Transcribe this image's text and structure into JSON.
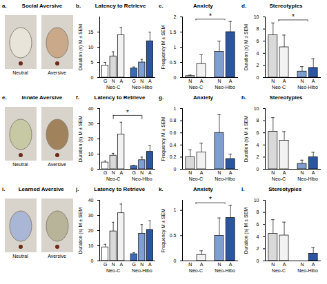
{
  "image_panels": [
    {
      "letter": "a.",
      "title": "Social Aversive",
      "labels": [
        "Neutral",
        "Aversive"
      ]
    },
    {
      "letter": "e.",
      "title": "Innate Aversive",
      "labels": [
        "Neutral",
        "Aversive"
      ]
    },
    {
      "letter": "i.",
      "title": "Learned Aversive",
      "labels": [
        "Neutral",
        "Aversive"
      ]
    }
  ],
  "chart_data": [
    {
      "letter": "b.",
      "type": "bar",
      "title": "Latency to Retrieve",
      "y_label": "Duration (s) M ± SEM",
      "categories": [
        "G",
        "N",
        "A",
        "G",
        "N",
        "A"
      ],
      "groups": [
        "Neo-C",
        "Neo-C",
        "Neo-C",
        "Neo-Hibo",
        "Neo-Hibo",
        "Neo-Hibo"
      ],
      "values": [
        4,
        7,
        14,
        3,
        5,
        12
      ],
      "errors": [
        1,
        1.5,
        2.5,
        0.5,
        1,
        3
      ],
      "colors": [
        "#ffffff",
        "#d9d9d9",
        "#f2f2f2",
        "#3a6bb5",
        "#7f9fd3",
        "#2b55a0"
      ],
      "ylim": [
        0,
        20
      ],
      "yticks": [
        0,
        5,
        10,
        15
      ],
      "annotations": []
    },
    {
      "letter": "c.",
      "type": "bar",
      "title": "Anxiety",
      "y_label": "Frequency M ± SEM",
      "categories": [
        "N",
        "A",
        "N",
        "A"
      ],
      "groups": [
        "Neo-C",
        "Neo-C",
        "Neo-Hibo",
        "Neo-Hibo"
      ],
      "values": [
        0.05,
        0.45,
        0.85,
        1.5
      ],
      "errors": [
        0.03,
        0.3,
        0.35,
        0.35
      ],
      "colors": [
        "#d9d9d9",
        "#f2f2f2",
        "#7f9fd3",
        "#2b55a0"
      ],
      "ylim": [
        0,
        2
      ],
      "yticks": [
        0,
        0.5,
        1,
        1.5,
        2
      ],
      "annotations": [
        {
          "text": "*",
          "from": "Neo-C",
          "to": "Neo-Hibo"
        }
      ]
    },
    {
      "letter": "d.",
      "type": "bar",
      "title": "Stereotypies",
      "y_label": "Duration (s) M ± SEM",
      "categories": [
        "N",
        "A",
        "N",
        "A"
      ],
      "groups": [
        "Neo-C",
        "Neo-C",
        "Neo-Hibo",
        "Neo-Hibo"
      ],
      "values": [
        7,
        5,
        1,
        1.6
      ],
      "errors": [
        2,
        2,
        0.8,
        1.5
      ],
      "colors": [
        "#d9d9d9",
        "#f2f2f2",
        "#7f9fd3",
        "#2b55a0"
      ],
      "ylim": [
        0,
        10
      ],
      "yticks": [
        0,
        2,
        4,
        6,
        8,
        10
      ],
      "annotations": [
        {
          "text": "*",
          "from": "Neo-C",
          "to": "Neo-Hibo"
        }
      ]
    },
    {
      "letter": "f.",
      "type": "bar",
      "title": "Latency to Retrieve",
      "y_label": "Duration (s) M ± SEM",
      "categories": [
        "G",
        "N",
        "A",
        "G",
        "N",
        "A"
      ],
      "groups": [
        "Neo-C",
        "Neo-C",
        "Neo-C",
        "Neo-Hibo",
        "Neo-Hibo",
        "Neo-Hibo"
      ],
      "values": [
        4.5,
        9,
        23,
        2,
        6,
        11.5
      ],
      "errors": [
        1,
        1.5,
        8,
        0.5,
        2,
        4
      ],
      "colors": [
        "#ffffff",
        "#d9d9d9",
        "#f2f2f2",
        "#3a6bb5",
        "#7f9fd3",
        "#2b55a0"
      ],
      "ylim": [
        0,
        40
      ],
      "yticks": [
        0,
        10,
        20,
        30,
        40
      ],
      "annotations": [
        {
          "text": "*",
          "from": "Neo-C",
          "to": "Neo-Hibo"
        }
      ]
    },
    {
      "letter": "g.",
      "type": "bar",
      "title": "Anxiety",
      "y_label": "Frequency M ± SEM",
      "categories": [
        "N",
        "A",
        "N",
        "A"
      ],
      "groups": [
        "Neo-C",
        "Neo-C",
        "Neo-Hibo",
        "Neo-Hibo"
      ],
      "values": [
        0.2,
        0.28,
        0.6,
        0.17
      ],
      "errors": [
        0.12,
        0.15,
        0.3,
        0.08
      ],
      "colors": [
        "#d9d9d9",
        "#f2f2f2",
        "#7f9fd3",
        "#2b55a0"
      ],
      "ylim": [
        0,
        1
      ],
      "yticks": [
        0,
        0.2,
        0.4,
        0.6,
        0.8,
        1
      ],
      "annotations": []
    },
    {
      "letter": "h.",
      "type": "bar",
      "title": "Stereotypies",
      "y_label": "Duration (s) M ± SEM",
      "categories": [
        "N",
        "A",
        "N",
        "A"
      ],
      "groups": [
        "Neo-C",
        "Neo-C",
        "Neo-Hibo",
        "Neo-Hibo"
      ],
      "values": [
        6.2,
        4.7,
        0.9,
        2
      ],
      "errors": [
        2.3,
        1.5,
        0.6,
        0.8
      ],
      "colors": [
        "#d9d9d9",
        "#f2f2f2",
        "#7f9fd3",
        "#2b55a0"
      ],
      "ylim": [
        0,
        10
      ],
      "yticks": [
        0,
        2,
        4,
        6,
        8,
        10
      ],
      "annotations": []
    },
    {
      "letter": "j.",
      "type": "bar",
      "title": "Latency to Retrieve",
      "y_label": "Duration (s) M ± SEM",
      "categories": [
        "G",
        "N",
        "A",
        "G",
        "N",
        "A"
      ],
      "groups": [
        "Neo-C",
        "Neo-C",
        "Neo-C",
        "Neo-Hibo",
        "Neo-Hibo",
        "Neo-Hibo"
      ],
      "values": [
        9,
        19.5,
        31.5,
        4.5,
        18,
        20.5
      ],
      "errors": [
        2,
        6,
        6,
        1,
        6,
        6
      ],
      "colors": [
        "#ffffff",
        "#d9d9d9",
        "#f2f2f2",
        "#3a6bb5",
        "#7f9fd3",
        "#2b55a0"
      ],
      "ylim": [
        0,
        40
      ],
      "yticks": [
        0,
        10,
        20,
        30,
        40
      ],
      "annotations": []
    },
    {
      "letter": "k.",
      "type": "bar",
      "title": "Anxiety",
      "y_label": "Frequency M ± SEM",
      "categories": [
        "N",
        "A",
        "N",
        "A"
      ],
      "groups": [
        "Neo-C",
        "Neo-C",
        "Neo-Hibo",
        "Neo-Hibo"
      ],
      "values": [
        0,
        0.12,
        0.5,
        0.85
      ],
      "errors": [
        0,
        0.08,
        0.35,
        0.25
      ],
      "colors": [
        "#d9d9d9",
        "#f2f2f2",
        "#7f9fd3",
        "#2b55a0"
      ],
      "ylim": [
        0,
        1.2
      ],
      "yticks": [
        0,
        0.5,
        1
      ],
      "annotations": [
        {
          "text": "*",
          "from": "Neo-C",
          "to": "Neo-Hibo"
        }
      ]
    },
    {
      "letter": "l.",
      "type": "bar",
      "title": "Stereotypies",
      "y_label": "Duration (s) M ± SEM",
      "categories": [
        "N",
        "A",
        "N",
        "A"
      ],
      "groups": [
        "Neo-C",
        "Neo-C",
        "Neo-Hibo",
        "Neo-Hibo"
      ],
      "values": [
        4.5,
        4.2,
        0,
        1.2
      ],
      "errors": [
        2.3,
        2.2,
        0,
        1
      ],
      "colors": [
        "#d9d9d9",
        "#f2f2f2",
        "#7f9fd3",
        "#2b55a0"
      ],
      "ylim": [
        0,
        10
      ],
      "yticks": [
        0,
        2,
        4,
        6,
        8,
        10
      ],
      "annotations": []
    }
  ]
}
